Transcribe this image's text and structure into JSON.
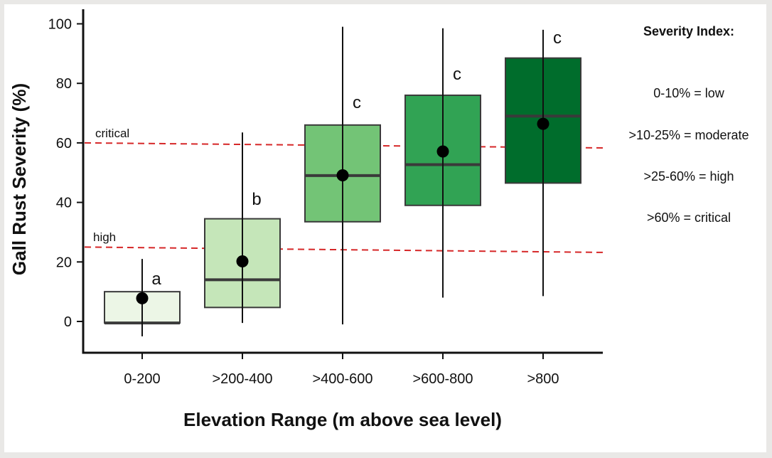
{
  "chart_data": {
    "type": "box",
    "xlabel": "Elevation Range (m above sea level)",
    "ylabel": "Gall Rust Severity (%)",
    "ylim": [
      -10,
      104
    ],
    "yticks": [
      0,
      20,
      40,
      60,
      80,
      100
    ],
    "categories": [
      "0-200",
      ">200-400",
      ">400-600",
      ">600-800",
      ">800"
    ],
    "boxes": [
      {
        "category": "0-200",
        "whisker_low": -5,
        "q1": -0.5,
        "median": -0.5,
        "q3": 10,
        "whisker_high": 21,
        "mean": 7.8,
        "letter": "a",
        "color": "#ecf6e6"
      },
      {
        "category": ">200-400",
        "whisker_low": -0.5,
        "q1": 4.7,
        "median": 14,
        "q3": 34.5,
        "whisker_high": 63.5,
        "mean": 20.2,
        "letter": "b",
        "color": "#c5e6b9"
      },
      {
        "category": ">400-600",
        "whisker_low": -1,
        "q1": 33.5,
        "median": 49,
        "q3": 66,
        "whisker_high": 99,
        "mean": 49.1,
        "letter": "c",
        "color": "#73c476"
      },
      {
        "category": ">600-800",
        "whisker_low": 8,
        "q1": 39,
        "median": 52.7,
        "q3": 76,
        "whisker_high": 98.5,
        "mean": 57.1,
        "letter": "c",
        "color": "#31a354"
      },
      {
        "category": ">800",
        "whisker_low": 8.5,
        "q1": 46.5,
        "median": 69,
        "q3": 88.5,
        "whisker_high": 98,
        "mean": 66.4,
        "letter": "c",
        "color": "#006d2c"
      }
    ],
    "reference_lines": [
      {
        "label": "critical",
        "y_start": 60,
        "y_end": 58.3,
        "color": "#d62728"
      },
      {
        "label": "high",
        "y_start": 25,
        "y_end": 23.2,
        "color": "#d62728"
      }
    ],
    "legend": {
      "title": "Severity Index:",
      "items": [
        "0-10% = low",
        ">10-25% = moderate",
        ">25-60% = high",
        ">60% = critical"
      ]
    }
  }
}
